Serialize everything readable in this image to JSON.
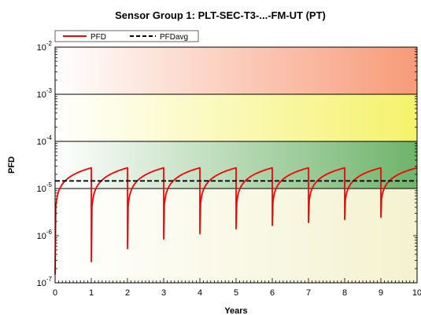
{
  "chart_data": {
    "type": "line",
    "title": "Sensor Group 1: PLT-SEC-T3-...-FM-UT (PT)",
    "xlabel": "Years",
    "ylabel": "PFD",
    "xlim": [
      0,
      10
    ],
    "ylim": [
      1e-07,
      0.01
    ],
    "yscale": "log",
    "x_ticks": [
      "0",
      "1",
      "2",
      "3",
      "4",
      "5",
      "6",
      "7",
      "8",
      "9",
      "10"
    ],
    "y_ticks": [
      {
        "base": "10",
        "exp": "-2"
      },
      {
        "base": "10",
        "exp": "-3"
      },
      {
        "base": "10",
        "exp": "-4"
      },
      {
        "base": "10",
        "exp": "-5"
      },
      {
        "base": "10",
        "exp": "-6"
      },
      {
        "base": "10",
        "exp": "-7"
      }
    ],
    "legend_position": "top-left",
    "background_bands": [
      {
        "from": 0.001,
        "to": 0.01,
        "color_start": "#ffffff",
        "color_end": "#f79a78"
      },
      {
        "from": 0.0001,
        "to": 0.001,
        "color_start": "#ffffff",
        "color_end": "#f5f26b"
      },
      {
        "from": 1e-05,
        "to": 0.0001,
        "color_start": "#ffffff",
        "color_end": "#6fb46b"
      },
      {
        "from": 1e-07,
        "to": 1e-05,
        "color_start": "#ffffff",
        "color_end": "#f4f2cf"
      }
    ],
    "series": [
      {
        "name": "PFD",
        "color": "#ff0000",
        "style": "solid",
        "cycle_start_values": [
          1.5e-07,
          2.8e-07,
          5.3e-07,
          8.5e-07,
          1.1e-06,
          1.4e-06,
          1.65e-06,
          1.9e-06,
          2.2e-06,
          2.45e-06
        ],
        "cycle_end_value": 2.75e-05,
        "x": [
          0,
          1,
          2,
          3,
          4,
          5,
          6,
          7,
          8,
          9,
          10
        ],
        "values": [
          1.5e-07,
          2.75e-05,
          2.75e-05,
          2.75e-05,
          2.75e-05,
          2.75e-05,
          2.75e-05,
          2.75e-05,
          2.75e-05,
          2.75e-05,
          2.75e-05
        ]
      },
      {
        "name": "PFDavg",
        "color": "#000000",
        "style": "dashed",
        "x": [
          0,
          10
        ],
        "values": [
          1.45e-05,
          1.45e-05
        ]
      }
    ]
  }
}
